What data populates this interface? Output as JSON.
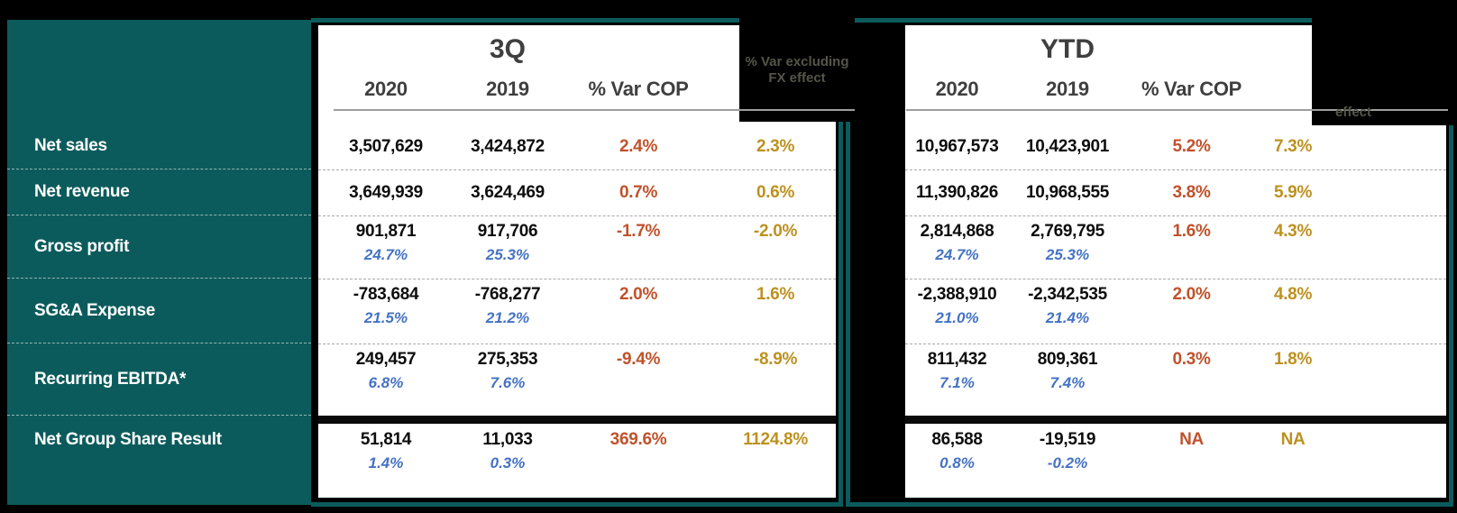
{
  "colors": {
    "teal_panel": "#0c5b5c",
    "positive_var_orange": "#c0522b",
    "fx_var_gold": "#bd9120",
    "margin_blue": "#4472c4",
    "header_gray": "#3f3f3f",
    "fx_header_text": "#55554b"
  },
  "chart_data": [
    {
      "type": "table",
      "title": "3Q",
      "header": {
        "y2020": "2020",
        "y2019": "2019",
        "var_cop": "% Var COP",
        "var_fx_line1": "% Var excluding",
        "var_fx_line2": "FX effect"
      },
      "rows": [
        {
          "label": "Net sales",
          "y2020": "3,507,629",
          "y2019": "3,424,872",
          "var_cop": "2.4%",
          "var_fx": "2.3%"
        },
        {
          "label": "Net revenue",
          "y2020": "3,649,939",
          "y2019": "3,624,469",
          "var_cop": "0.7%",
          "var_fx": "0.6%"
        },
        {
          "label": "Gross profit",
          "y2020": "901,871",
          "y2020_margin": "24.7%",
          "y2019": "917,706",
          "y2019_margin": "25.3%",
          "var_cop": "-1.7%",
          "var_fx": "-2.0%"
        },
        {
          "label": "SG&A Expense",
          "y2020": "-783,684",
          "y2020_margin": "21.5%",
          "y2019": "-768,277",
          "y2019_margin": "21.2%",
          "var_cop": "2.0%",
          "var_fx": "1.6%"
        },
        {
          "label": "Recurring EBITDA*",
          "y2020": "249,457",
          "y2020_margin": "6.8%",
          "y2019": "275,353",
          "y2019_margin": "7.6%",
          "var_cop": "-9.4%",
          "var_fx": "-8.9%"
        },
        {
          "label": "Net Group Share Result",
          "y2020": "51,814",
          "y2020_margin": "1.4%",
          "y2019": "11,033",
          "y2019_margin": "0.3%",
          "var_cop": "369.6%",
          "var_fx": "1124.8%"
        }
      ]
    },
    {
      "type": "table",
      "title": "YTD",
      "header": {
        "y2020": "2020",
        "y2019": "2019",
        "var_cop": "% Var COP",
        "var_fx_visible": "effect"
      },
      "rows": [
        {
          "label": "Net sales",
          "y2020": "10,967,573",
          "y2019": "10,423,901",
          "var_cop": "5.2%",
          "var_fx": "7.3%"
        },
        {
          "label": "Net revenue",
          "y2020": "11,390,826",
          "y2019": "10,968,555",
          "var_cop": "3.8%",
          "var_fx": "5.9%"
        },
        {
          "label": "Gross profit",
          "y2020": "2,814,868",
          "y2020_margin": "24.7%",
          "y2019": "2,769,795",
          "y2019_margin": "25.3%",
          "var_cop": "1.6%",
          "var_fx": "4.3%"
        },
        {
          "label": "SG&A Expense",
          "y2020": "-2,388,910",
          "y2020_margin": "21.0%",
          "y2019": "-2,342,535",
          "y2019_margin": "21.4%",
          "var_cop": "2.0%",
          "var_fx": "4.8%"
        },
        {
          "label": "Recurring EBITDA*",
          "y2020": "811,432",
          "y2020_margin": "7.1%",
          "y2019": "809,361",
          "y2019_margin": "7.4%",
          "var_cop": "0.3%",
          "var_fx": "1.8%"
        },
        {
          "label": "Net Group Share Result",
          "y2020": "86,588",
          "y2020_margin": "0.8%",
          "y2019": "-19,519",
          "y2019_margin": "-0.2%",
          "var_cop": "NA",
          "var_fx": "NA"
        }
      ]
    }
  ]
}
